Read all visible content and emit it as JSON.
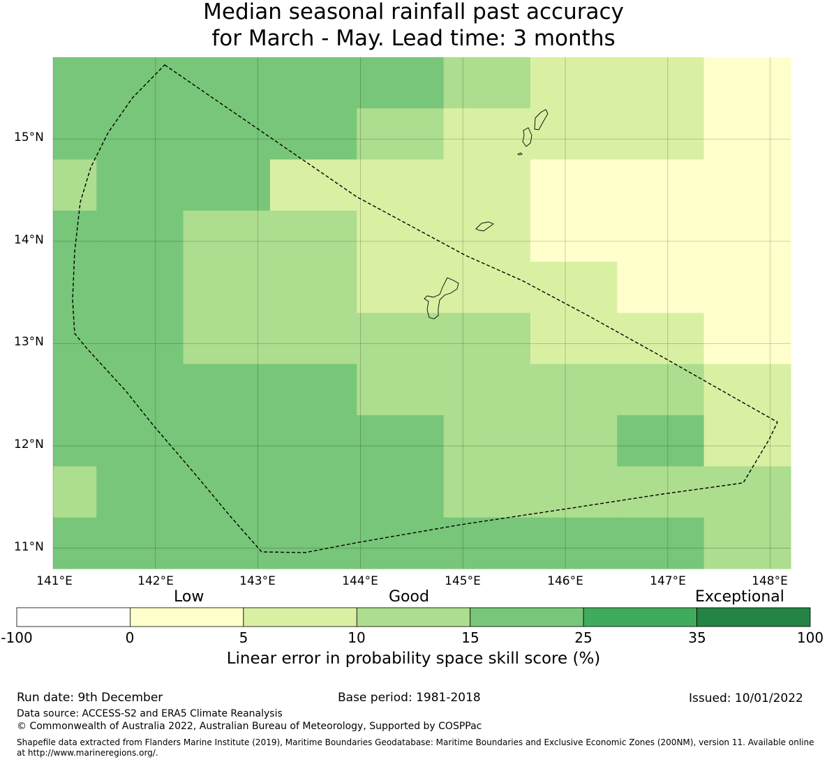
{
  "title": {
    "line1": "Median seasonal rainfall past accuracy",
    "line2": "for March - May. Lead time: 3 months"
  },
  "map": {
    "lat_labels": [
      "15°N",
      "14°N",
      "13°N",
      "12°N",
      "11°N"
    ],
    "lon_labels": [
      "141°E",
      "142°E",
      "143°E",
      "144°E",
      "145°E",
      "146°E",
      "147°E",
      "148°E"
    ],
    "lat_range": [
      10.8,
      15.8
    ],
    "lon_range": [
      141.0,
      148.2
    ],
    "grid_rows": [
      [
        3,
        3,
        3,
        3,
        3,
        2,
        1,
        1,
        0
      ],
      [
        3,
        3,
        3,
        3,
        2,
        1,
        1,
        1,
        0
      ],
      [
        2,
        3,
        3,
        1,
        1,
        1,
        0,
        0,
        0
      ],
      [
        3,
        3,
        2,
        2,
        1,
        1,
        0,
        0,
        0
      ],
      [
        3,
        3,
        2,
        2,
        1,
        1,
        1,
        0,
        0
      ],
      [
        3,
        3,
        2,
        2,
        2,
        2,
        1,
        1,
        0
      ],
      [
        3,
        3,
        3,
        3,
        2,
        2,
        2,
        2,
        1
      ],
      [
        3,
        3,
        3,
        3,
        3,
        2,
        2,
        3,
        1
      ],
      [
        2,
        3,
        3,
        3,
        3,
        2,
        2,
        2,
        2
      ],
      [
        3,
        3,
        3,
        3,
        3,
        3,
        3,
        3,
        2
      ]
    ],
    "grid_left_col_width": 0.5
  },
  "colorbar": {
    "categories": [
      "Low",
      "Good",
      "Exceptional"
    ],
    "ticks": [
      "-100",
      "0",
      "5",
      "10",
      "15",
      "25",
      "35",
      "100"
    ],
    "colors": [
      "#ffffff",
      "#ffffcc",
      "#d9f0a3",
      "#addd8e",
      "#78c679",
      "#41ab5d",
      "#238443"
    ],
    "label": "Linear error in probability space skill score (%)"
  },
  "footer": {
    "run_date": "Run date: 9th December",
    "base_period": "Base period: 1981-2018",
    "issued": "Issued: 10/01/2022",
    "data_source": "Data source: ACCESS-S2 and ERA5 Climate Reanalysis",
    "copyright": "© Commonwealth of Australia 2022, Australian Bureau of Meteorology, Supported by COSPPac",
    "shapefile_line1": "Shapefile data extracted from Flanders Marine Institute (2019), Maritime Boundaries Geodatabase: Maritime Boundaries and Exclusive Economic Zones (200NM), version 11. Available online",
    "shapefile_line2": "at http://www.marineregions.org/."
  }
}
